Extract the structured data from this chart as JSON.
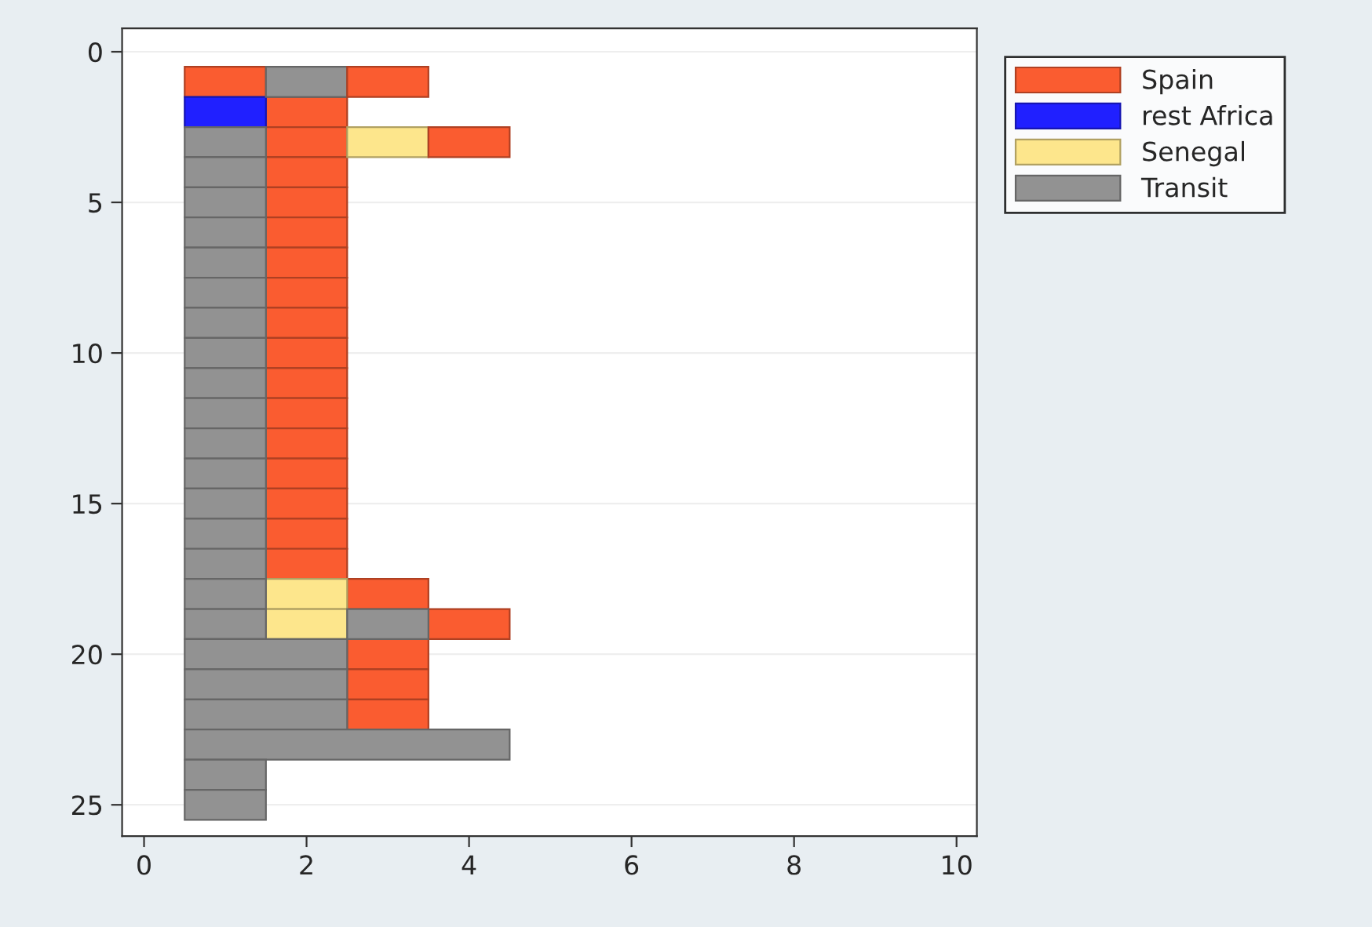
{
  "chart_data": {
    "type": "bar",
    "orientation": "horizontal",
    "legend": "top right",
    "grid": "y",
    "xlim": [
      -0.27,
      10.25
    ],
    "xticks": [
      0,
      2,
      4,
      6,
      8,
      10
    ],
    "ylim": [
      26.04,
      -0.78
    ],
    "yticks": [
      0,
      5,
      10,
      15,
      20,
      25
    ],
    "series": [
      {
        "name": "Spain",
        "color": "#fa5c30",
        "x": [
          1,
          2,
          3,
          4,
          5,
          6,
          7,
          8,
          9,
          10,
          11,
          12,
          13,
          14,
          15,
          16,
          17,
          18,
          19,
          20,
          21,
          22
        ],
        "base": [
          0.5,
          1.5,
          1.5,
          1.5,
          1.5,
          1.5,
          1.5,
          1.5,
          1.5,
          1.5,
          1.5,
          1.5,
          1.5,
          1.5,
          1.5,
          1.5,
          1.5,
          2.5,
          3.5,
          2.5,
          2.5,
          2.5
        ],
        "values": [
          1,
          1,
          1,
          1,
          1,
          1,
          1,
          1,
          1,
          1,
          1,
          1,
          1,
          1,
          1,
          1,
          1,
          1,
          1,
          1,
          1,
          1
        ]
      },
      {
        "name": "rest Africa",
        "color": "#2020ff",
        "x": [
          2
        ],
        "base": [
          0.5
        ],
        "values": [
          1
        ]
      },
      {
        "name": "Senegal",
        "color": "#fde68c",
        "x": [
          3,
          18,
          19
        ],
        "base": [
          2.5,
          1.5,
          1.5
        ],
        "values": [
          1,
          1,
          1
        ]
      },
      {
        "name": "Transit",
        "color": "#929292",
        "x": [
          1,
          3,
          4,
          5,
          6,
          7,
          8,
          9,
          10,
          11,
          12,
          13,
          14,
          15,
          16,
          17,
          18,
          19,
          20,
          21,
          22,
          23,
          24,
          25
        ],
        "base": [
          1.5,
          0.5,
          0.5,
          0.5,
          0.5,
          0.5,
          0.5,
          0.5,
          0.5,
          0.5,
          0.5,
          0.5,
          0.5,
          0.5,
          0.5,
          0.5,
          0.5,
          0.5,
          0.5,
          0.5,
          0.5,
          0.5,
          0.5,
          0.5
        ],
        "values": [
          1,
          1,
          1,
          1,
          1,
          1,
          1,
          1,
          1,
          1,
          1,
          1,
          1,
          1,
          1,
          1,
          1,
          1,
          2,
          2,
          2,
          4,
          1,
          1
        ]
      },
      {
        "color": "#fa5c30",
        "x": [
          1,
          3
        ],
        "base": [
          2.5,
          3.5
        ],
        "values": [
          1,
          1
        ]
      },
      {
        "color": "#929292",
        "x": [
          19
        ],
        "base": [
          2.5
        ],
        "values": [
          1
        ]
      }
    ]
  }
}
